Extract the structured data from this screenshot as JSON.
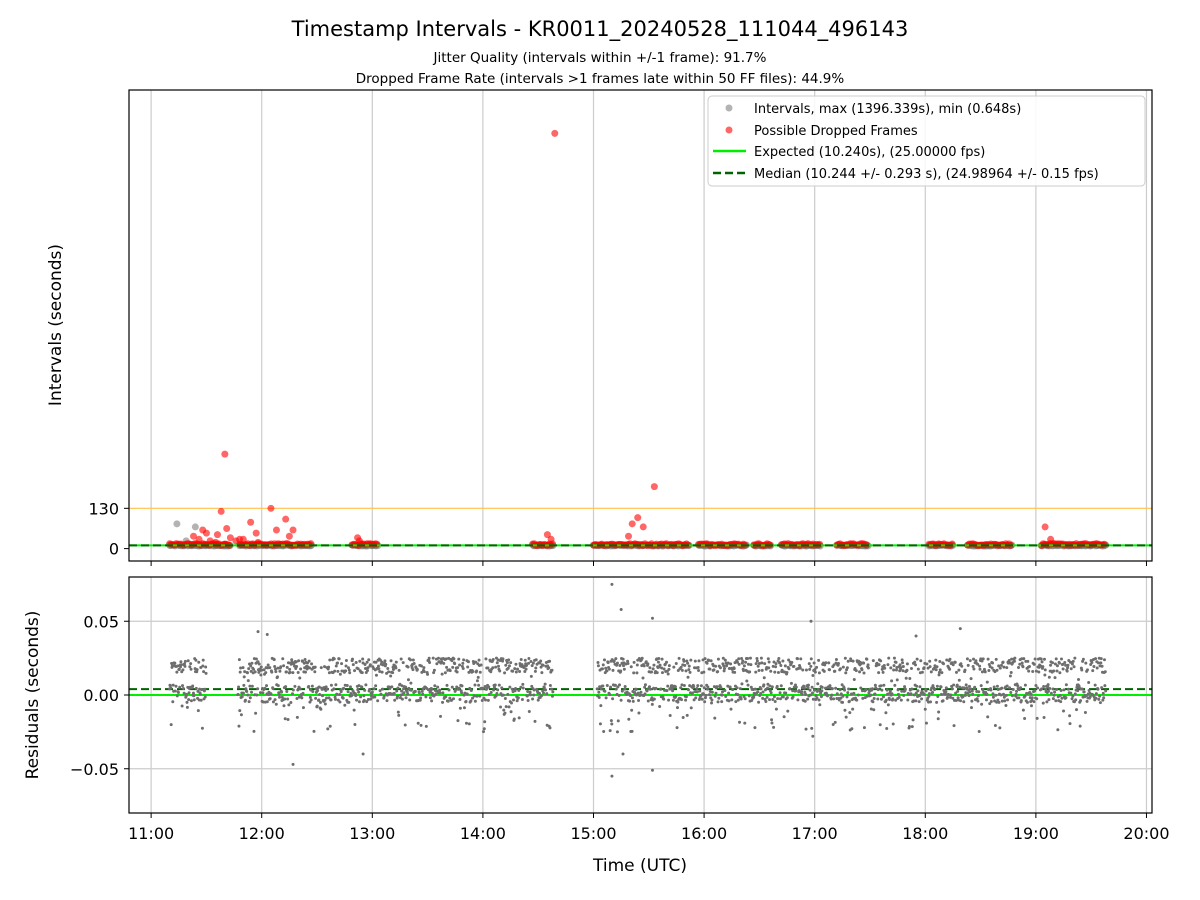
{
  "chart_data": [
    {
      "panel": "intervals",
      "type": "scatter",
      "title": "Timestamp Intervals - KR0011_20240528_111044_496143",
      "subtitle_lines": [
        "Jitter Quality (intervals within +/-1 frame): 91.7%",
        "Dropped Frame Rate (intervals >1 frames late within 50 FF files): 44.9%"
      ],
      "ylabel": "Intervals (seconds)",
      "ylim": [
        -40,
        1480
      ],
      "yticks": [
        {
          "value": 0,
          "label": "0"
        },
        {
          "value": 130,
          "label": "130"
        }
      ],
      "threshold_line": {
        "value": 130,
        "color": "#ffc04d"
      },
      "grid": "vertical",
      "legend_position": "top-right",
      "legend": [
        "Intervals, max (1396.339s), min (0.648s)",
        "Possible Dropped Frames",
        "Expected (10.240s), (25.00000 fps)",
        "Median (10.244 +/- 0.293 s), (24.98964 +/- 0.15 fps)"
      ],
      "expected": 10.24,
      "median": 10.244,
      "colors": {
        "intervals": "#808080",
        "dropped": "#ff0000",
        "expected": "#00ee00",
        "median": "#006400"
      },
      "segments": [
        {
          "start": "11:10",
          "end": "11:43"
        },
        {
          "start": "11:48",
          "end": "12:27"
        },
        {
          "start": "12:49",
          "end": "13:03"
        },
        {
          "start": "14:27",
          "end": "14:38"
        },
        {
          "start": "15:00",
          "end": "15:52"
        },
        {
          "start": "15:57",
          "end": "16:23"
        },
        {
          "start": "16:27",
          "end": "16:36"
        },
        {
          "start": "16:42",
          "end": "17:03"
        },
        {
          "start": "17:12",
          "end": "17:29"
        },
        {
          "start": "18:02",
          "end": "18:15"
        },
        {
          "start": "18:23",
          "end": "18:47"
        },
        {
          "start": "19:03",
          "end": "19:38"
        }
      ],
      "dropped_frames": [
        {
          "t": "11:23",
          "v": 40
        },
        {
          "t": "11:26",
          "v": 30
        },
        {
          "t": "11:28",
          "v": 60
        },
        {
          "t": "11:30",
          "v": 50
        },
        {
          "t": "11:32",
          "v": 25
        },
        {
          "t": "11:35",
          "v": 20
        },
        {
          "t": "11:36",
          "v": 45
        },
        {
          "t": "11:38",
          "v": 120
        },
        {
          "t": "11:40",
          "v": 15
        },
        {
          "t": "11:41",
          "v": 65
        },
        {
          "t": "11:43",
          "v": 35
        },
        {
          "t": "11:46",
          "v": 25
        },
        {
          "t": "11:48",
          "v": 30
        },
        {
          "t": "11:50",
          "v": 30
        },
        {
          "t": "11:54",
          "v": 85
        },
        {
          "t": "11:57",
          "v": 50
        },
        {
          "t": "11:58",
          "v": 20
        },
        {
          "t": "12:05",
          "v": 130
        },
        {
          "t": "12:08",
          "v": 60
        },
        {
          "t": "12:13",
          "v": 95
        },
        {
          "t": "12:15",
          "v": 40
        },
        {
          "t": "12:17",
          "v": 60
        },
        {
          "t": "11:40",
          "v": 305
        },
        {
          "t": "12:52",
          "v": 35
        },
        {
          "t": "12:53",
          "v": 25
        },
        {
          "t": "14:35",
          "v": 45
        },
        {
          "t": "14:37",
          "v": 30
        },
        {
          "t": "14:39",
          "v": 1340
        },
        {
          "t": "15:19",
          "v": 40
        },
        {
          "t": "15:21",
          "v": 80
        },
        {
          "t": "15:24",
          "v": 100
        },
        {
          "t": "15:27",
          "v": 70
        },
        {
          "t": "15:33",
          "v": 200
        },
        {
          "t": "19:05",
          "v": 70
        },
        {
          "t": "19:08",
          "v": 30
        }
      ],
      "gray_outliers": [
        {
          "t": "11:14",
          "v": 80
        },
        {
          "t": "11:19",
          "v": 25
        },
        {
          "t": "11:24",
          "v": 70
        },
        {
          "t": "11:21",
          "v": 15
        },
        {
          "t": "11:27",
          "v": 10
        }
      ]
    },
    {
      "panel": "residuals",
      "type": "scatter",
      "xlabel": "Time (UTC)",
      "ylabel": "Residuals (seconds)",
      "ylim": [
        -0.08,
        0.08
      ],
      "yticks": [
        {
          "value": 0.05,
          "label": "0.05"
        },
        {
          "value": 0.0,
          "label": "0.00"
        },
        {
          "value": -0.05,
          "label": "−0.05"
        }
      ],
      "xticks": [
        "11:00",
        "12:00",
        "13:00",
        "14:00",
        "15:00",
        "16:00",
        "17:00",
        "18:00",
        "19:00",
        "20:00"
      ],
      "xlim": [
        "10:48",
        "20:03"
      ],
      "grid": true,
      "expected_residual": 0.0,
      "median_residual": 0.004,
      "segments": [
        {
          "start": "11:10",
          "end": "11:30"
        },
        {
          "start": "11:47",
          "end": "14:38"
        },
        {
          "start": "15:02",
          "end": "19:38"
        }
      ],
      "outliers": [
        {
          "t": "15:10",
          "v": 0.075
        },
        {
          "t": "15:15",
          "v": 0.058
        },
        {
          "t": "15:32",
          "v": 0.052
        },
        {
          "t": "16:58",
          "v": 0.05
        },
        {
          "t": "15:10",
          "v": -0.055
        },
        {
          "t": "15:32",
          "v": -0.051
        },
        {
          "t": "12:17",
          "v": -0.047
        },
        {
          "t": "12:55",
          "v": -0.04
        },
        {
          "t": "11:58",
          "v": 0.043
        },
        {
          "t": "12:03",
          "v": 0.041
        },
        {
          "t": "18:19",
          "v": 0.045
        },
        {
          "t": "17:55",
          "v": 0.04
        },
        {
          "t": "15:16",
          "v": -0.04
        },
        {
          "t": "15:13",
          "v": -0.025
        },
        {
          "t": "16:59",
          "v": -0.028
        }
      ]
    }
  ]
}
